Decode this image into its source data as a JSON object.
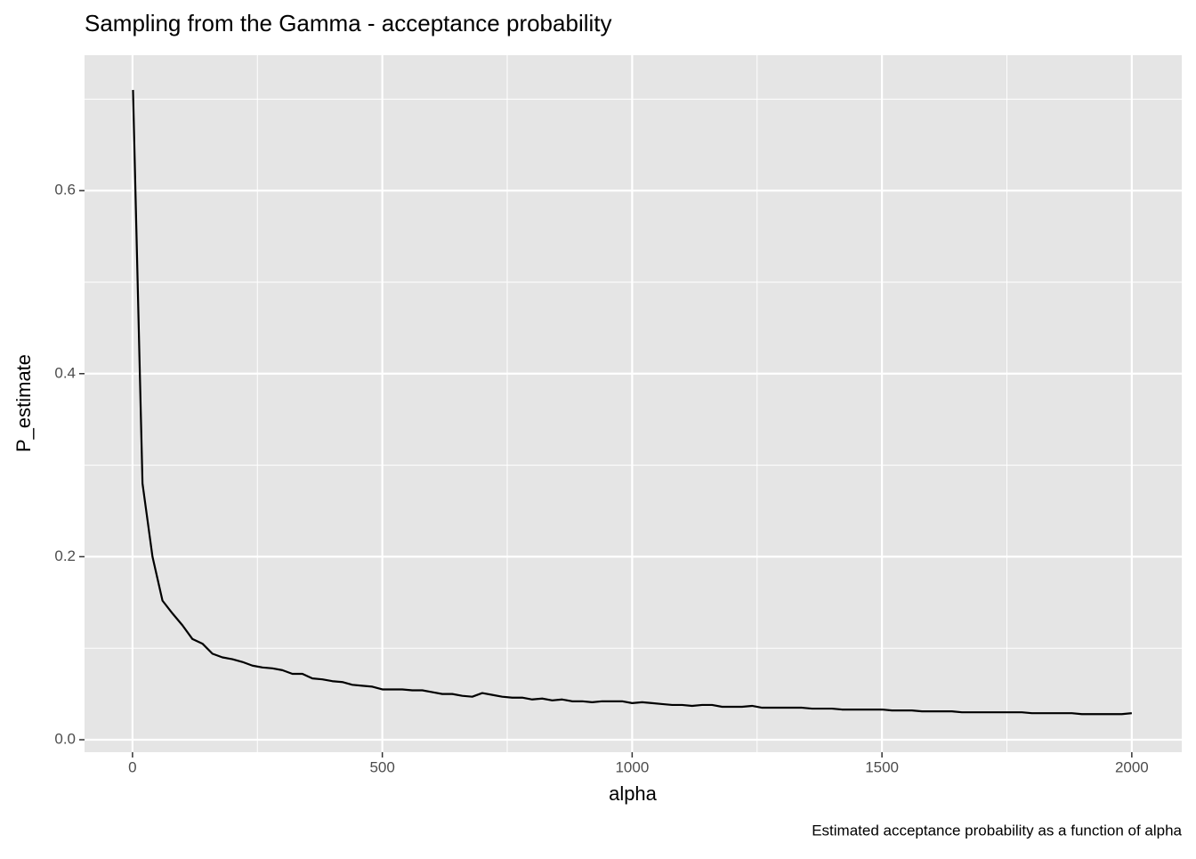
{
  "chart_data": {
    "type": "line",
    "title": "Sampling from the Gamma - acceptance probability",
    "x_label": "alpha",
    "y_label": "P_estimate",
    "caption": "Estimated acceptance probability as a function of alpha",
    "x": [
      1,
      20,
      40,
      60,
      80,
      100,
      120,
      140,
      160,
      180,
      200,
      220,
      240,
      260,
      280,
      300,
      320,
      340,
      360,
      380,
      400,
      420,
      440,
      460,
      480,
      500,
      520,
      540,
      560,
      580,
      600,
      620,
      640,
      660,
      680,
      700,
      720,
      740,
      760,
      780,
      800,
      820,
      840,
      860,
      880,
      900,
      920,
      940,
      960,
      980,
      1000,
      1020,
      1040,
      1060,
      1080,
      1100,
      1120,
      1140,
      1160,
      1180,
      1200,
      1220,
      1240,
      1260,
      1280,
      1300,
      1320,
      1340,
      1360,
      1380,
      1400,
      1420,
      1440,
      1460,
      1480,
      1500,
      1520,
      1540,
      1560,
      1580,
      1600,
      1620,
      1640,
      1660,
      1680,
      1700,
      1720,
      1740,
      1760,
      1780,
      1800,
      1820,
      1840,
      1860,
      1880,
      1900,
      1920,
      1940,
      1960,
      1980,
      2000
    ],
    "series": [
      {
        "color": "#000000",
        "values": [
          0.71,
          0.28,
          0.2,
          0.152,
          0.138,
          0.125,
          0.11,
          0.105,
          0.094,
          0.09,
          0.088,
          0.085,
          0.081,
          0.079,
          0.078,
          0.076,
          0.072,
          0.072,
          0.067,
          0.066,
          0.064,
          0.063,
          0.06,
          0.059,
          0.058,
          0.055,
          0.055,
          0.055,
          0.054,
          0.054,
          0.052,
          0.05,
          0.05,
          0.048,
          0.047,
          0.051,
          0.049,
          0.047,
          0.046,
          0.046,
          0.044,
          0.045,
          0.043,
          0.044,
          0.042,
          0.042,
          0.041,
          0.042,
          0.042,
          0.042,
          0.04,
          0.041,
          0.04,
          0.039,
          0.038,
          0.038,
          0.037,
          0.038,
          0.038,
          0.036,
          0.036,
          0.036,
          0.037,
          0.035,
          0.035,
          0.035,
          0.035,
          0.035,
          0.034,
          0.034,
          0.034,
          0.033,
          0.033,
          0.033,
          0.033,
          0.033,
          0.032,
          0.032,
          0.032,
          0.031,
          0.031,
          0.031,
          0.031,
          0.03,
          0.03,
          0.03,
          0.03,
          0.03,
          0.03,
          0.03,
          0.029,
          0.029,
          0.029,
          0.029,
          0.029,
          0.028,
          0.028,
          0.028,
          0.028,
          0.028,
          0.029
        ]
      }
    ],
    "xlim": [
      -96,
      2100
    ],
    "ylim": [
      -0.0136,
      0.748
    ],
    "xticks": [
      0,
      500,
      1000,
      1500,
      2000
    ],
    "yticks": [
      {
        "value": 0,
        "label": "0.0"
      },
      {
        "value": 0.2,
        "label": "0.2"
      },
      {
        "value": 0.4,
        "label": "0.4"
      },
      {
        "value": 0.6,
        "label": "0.6"
      }
    ],
    "minor_xticks": [
      250,
      750,
      1250,
      1750
    ],
    "minor_yticks": [
      0.1,
      0.3,
      0.5,
      0.7
    ],
    "grid": true,
    "panel_color": "#e5e5e5"
  }
}
